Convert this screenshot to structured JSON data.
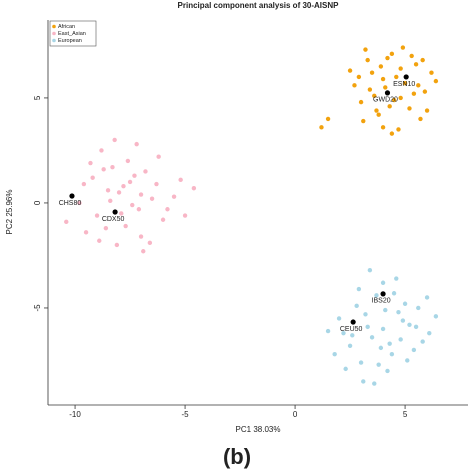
{
  "chart_data": {
    "type": "scatter",
    "title": "Principal component analysis of 30-AISNP",
    "x_label": "PC1  38.03%",
    "y_label": "PC2  25.96%",
    "caption": "(b)",
    "legend_position": "top-left",
    "xlim": [
      -11.23,
      7.86
    ],
    "ylim": [
      -9.62,
      8.71
    ],
    "xticks": [
      -10,
      -5,
      0,
      5
    ],
    "yticks": [
      -5,
      0,
      5
    ],
    "series": [
      {
        "name": "African",
        "color": "#f2a20e",
        "x": [
          4.1,
          3.5,
          4.8,
          5.5,
          3.0,
          4.4,
          5.9,
          3.8,
          4.6,
          2.7,
          5.2,
          6.2,
          3.3,
          4.0,
          5.7,
          4.9,
          3.6,
          2.5,
          6.4,
          4.3,
          5.0,
          3.9,
          4.7,
          5.4,
          3.1,
          4.2,
          5.8,
          3.4,
          4.5,
          6.0,
          2.9,
          5.3,
          4.0,
          3.7,
          4.8,
          5.6,
          1.2,
          1.5,
          4.4,
          3.2
        ],
        "values": [
          5.5,
          6.2,
          5.0,
          6.6,
          4.8,
          7.1,
          5.3,
          4.2,
          6.0,
          5.6,
          4.5,
          6.2,
          6.8,
          3.6,
          4.0,
          7.4,
          5.1,
          6.3,
          5.8,
          4.6,
          5.7,
          6.5,
          3.5,
          5.2,
          3.9,
          6.9,
          6.8,
          5.4,
          4.9,
          4.4,
          6.0,
          7.0,
          5.9,
          4.4,
          6.4,
          5.6,
          3.6,
          4.0,
          3.3,
          7.3
        ]
      },
      {
        "name": "East_Asian",
        "color": "#f8b6c6",
        "x": [
          -8.0,
          -9.2,
          -7.1,
          -6.3,
          -8.6,
          -7.6,
          -9.8,
          -5.5,
          -8.3,
          -7.0,
          -6.8,
          -9.0,
          -7.8,
          -6.0,
          -8.8,
          -7.4,
          -5.2,
          -9.5,
          -8.1,
          -6.5,
          -7.2,
          -8.5,
          -10.4,
          -4.6,
          -7.9,
          -6.9,
          -9.3,
          -8.4,
          -5.8,
          -7.3,
          -6.2,
          -8.9,
          -7.7,
          -7.0,
          -9.6,
          -5.0,
          -8.2,
          -6.6,
          -7.5,
          -8.7
        ],
        "values": [
          0.5,
          1.2,
          -0.3,
          0.9,
          -1.2,
          2.0,
          0.0,
          0.3,
          1.7,
          -1.6,
          1.5,
          -0.6,
          0.8,
          -0.8,
          2.5,
          -0.1,
          1.1,
          -1.4,
          -2.0,
          0.2,
          2.8,
          0.6,
          -0.9,
          0.7,
          -0.5,
          -2.3,
          1.9,
          0.1,
          -0.3,
          1.3,
          2.2,
          -1.8,
          -1.1,
          0.4,
          0.9,
          -0.6,
          3.0,
          -1.9,
          1.0,
          1.6
        ]
      },
      {
        "name": "European",
        "color": "#a8d6e6",
        "x": [
          4.0,
          3.2,
          4.8,
          5.6,
          2.5,
          3.7,
          4.4,
          5.2,
          2.0,
          3.0,
          6.1,
          4.6,
          3.5,
          5.0,
          2.8,
          4.2,
          6.4,
          3.9,
          1.5,
          5.4,
          4.1,
          2.3,
          3.4,
          4.9,
          5.8,
          3.6,
          4.5,
          2.6,
          5.1,
          3.3,
          1.8,
          4.3,
          6.0,
          3.8,
          4.7,
          2.9,
          5.5,
          3.1,
          4.0,
          2.2
        ],
        "values": [
          -6.0,
          -5.3,
          -6.5,
          -5.0,
          -6.8,
          -4.4,
          -7.2,
          -5.8,
          -5.5,
          -7.6,
          -6.2,
          -3.6,
          -6.4,
          -4.8,
          -4.9,
          -8.0,
          -5.4,
          -6.9,
          -6.1,
          -7.0,
          -5.1,
          -7.9,
          -3.2,
          -5.6,
          -6.6,
          -8.6,
          -4.3,
          -6.3,
          -7.5,
          -5.9,
          -7.2,
          -6.7,
          -4.5,
          -7.7,
          -5.2,
          -4.1,
          -5.9,
          -8.5,
          -3.8,
          -6.2
        ]
      }
    ],
    "annotations": [
      {
        "text": "ESN10",
        "x": 5.05,
        "y": 6.0
      },
      {
        "text": "GWD20",
        "x": 4.2,
        "y": 5.24
      },
      {
        "text": "CHS80",
        "x": -10.14,
        "y": 0.33
      },
      {
        "text": "CDX50",
        "x": -8.18,
        "y": -0.43
      },
      {
        "text": "IBS20",
        "x": 4.0,
        "y": -4.33
      },
      {
        "text": "CEU50",
        "x": 2.64,
        "y": -5.67
      }
    ]
  }
}
